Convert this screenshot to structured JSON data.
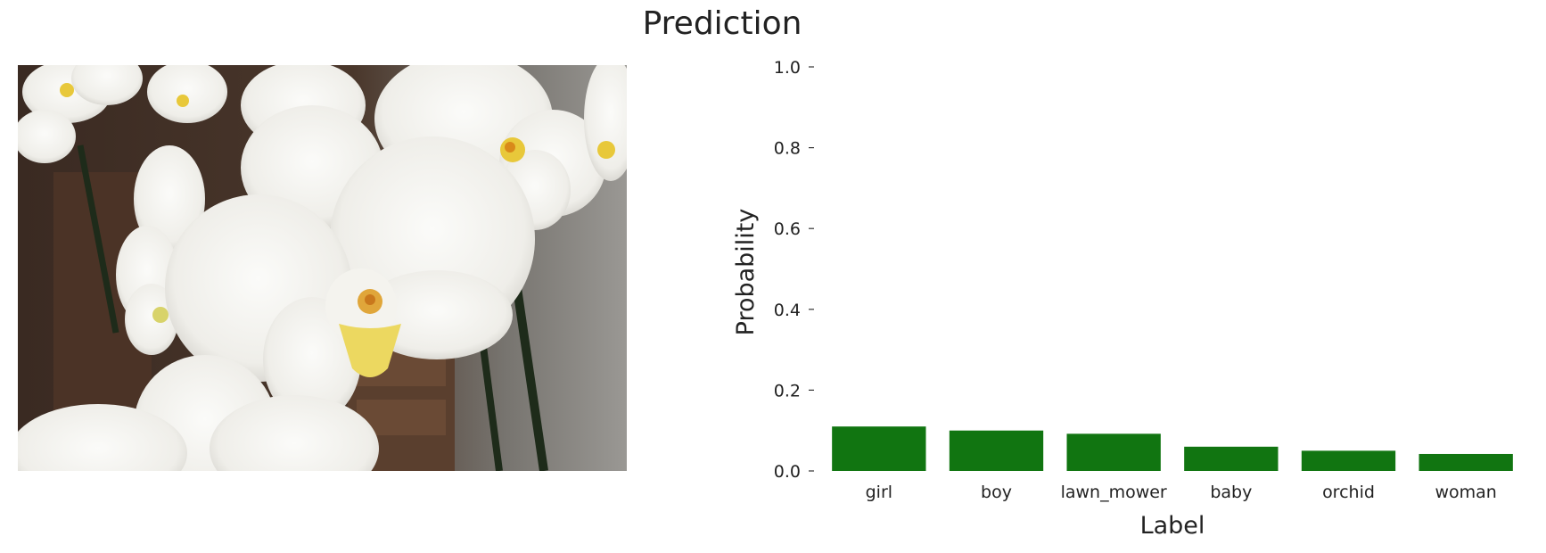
{
  "figure": {
    "title": "Prediction"
  },
  "chart_data": {
    "type": "bar",
    "categories": [
      "girl",
      "boy",
      "lawn_mower",
      "baby",
      "orchid",
      "woman"
    ],
    "values": [
      0.11,
      0.1,
      0.092,
      0.06,
      0.05,
      0.042
    ],
    "xlabel": "Label",
    "ylabel": "Probability",
    "ylim": [
      0,
      1.0
    ],
    "yticks": [
      "0.0",
      "0.2",
      "0.4",
      "0.6",
      "0.8",
      "1.0"
    ],
    "bar_color": "#117511",
    "grid": false
  },
  "photo": {
    "subject": "white-orchid-photo",
    "colors": {
      "petal": "#f2f1ee",
      "petal_shade": "#d9d8d3",
      "lip": "#e8c83a",
      "center": "#d98a1a",
      "bg_dark": "#3a2a22",
      "bg_wall": "#8e8c88",
      "stem": "#1e2b1a"
    }
  }
}
